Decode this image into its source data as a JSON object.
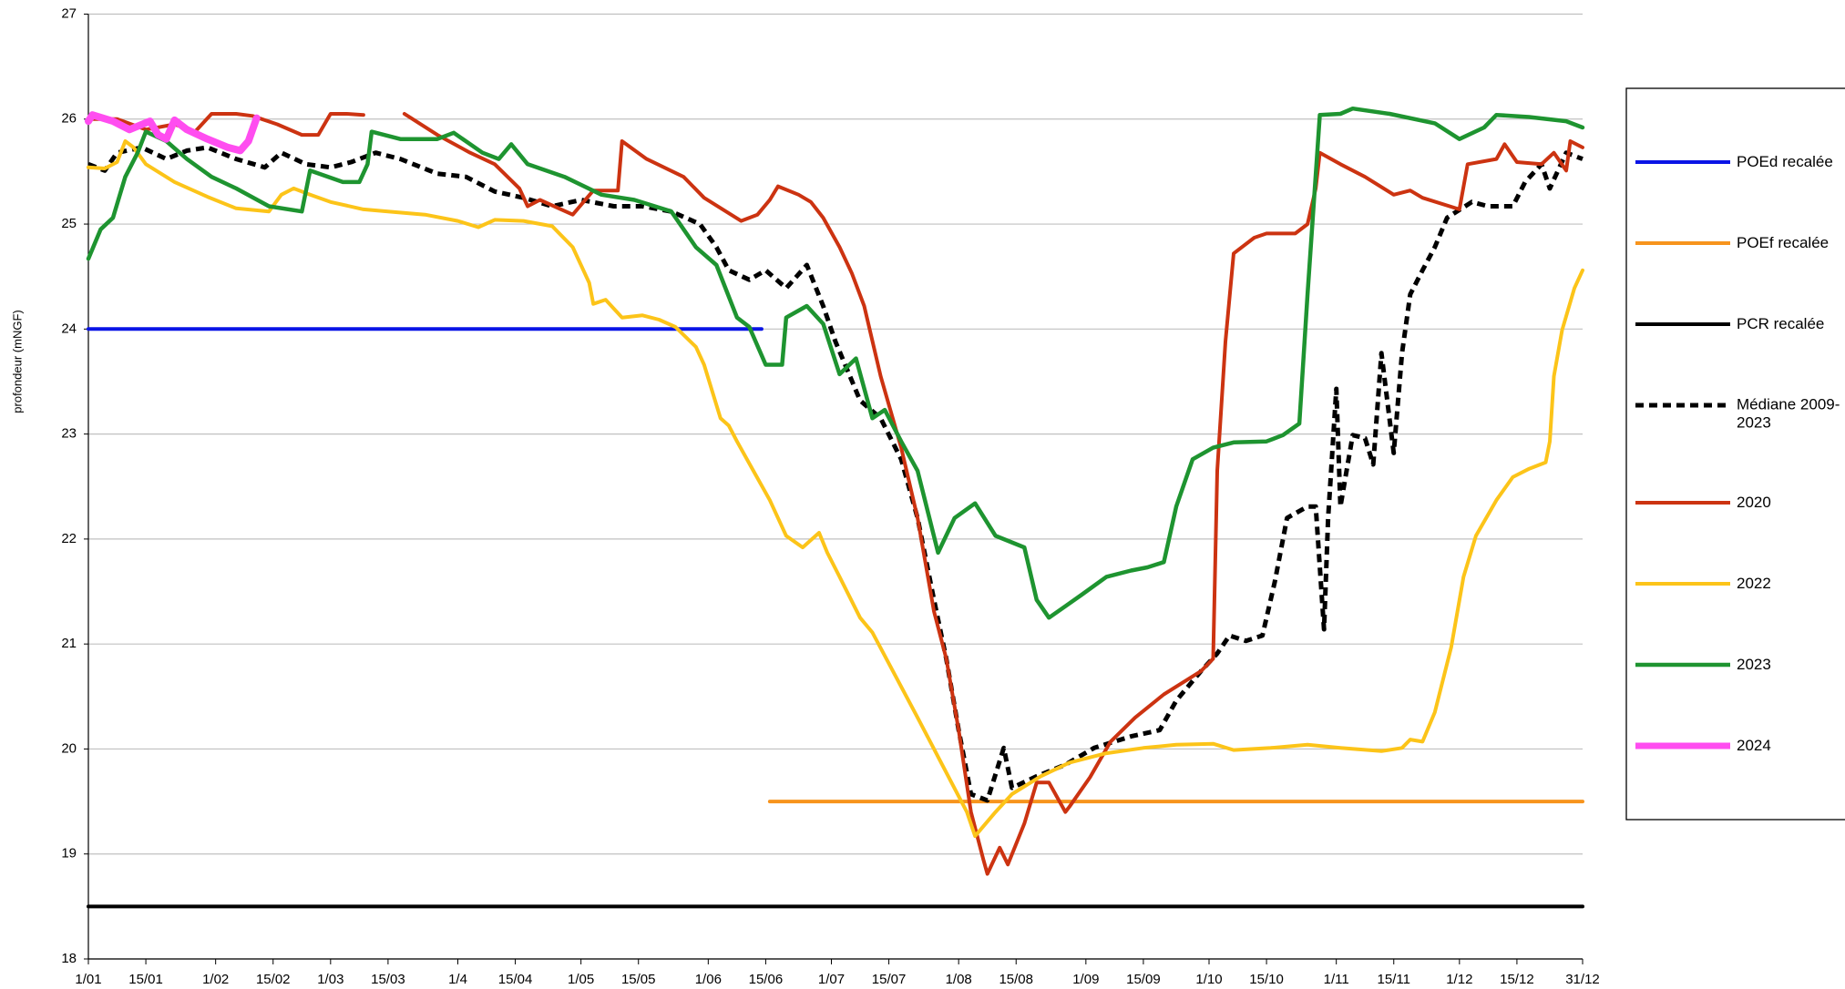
{
  "chart_data": {
    "type": "line",
    "y_label": "profondeur (mNGF)",
    "xlim": [
      0,
      364
    ],
    "xticks": [
      {
        "value": 0,
        "label": "1/01"
      },
      {
        "value": 14,
        "label": "15/01"
      },
      {
        "value": 31,
        "label": "1/02"
      },
      {
        "value": 45,
        "label": "15/02"
      },
      {
        "value": 59,
        "label": "1/03"
      },
      {
        "value": 73,
        "label": "15/03"
      },
      {
        "value": 90,
        "label": "1/4"
      },
      {
        "value": 104,
        "label": "15/04"
      },
      {
        "value": 120,
        "label": "1/05"
      },
      {
        "value": 134,
        "label": "15/05"
      },
      {
        "value": 151,
        "label": "1/06"
      },
      {
        "value": 165,
        "label": "15/06"
      },
      {
        "value": 181,
        "label": "1/07"
      },
      {
        "value": 195,
        "label": "15/07"
      },
      {
        "value": 212,
        "label": "1/08"
      },
      {
        "value": 226,
        "label": "15/08"
      },
      {
        "value": 243,
        "label": "1/09"
      },
      {
        "value": 257,
        "label": "15/09"
      },
      {
        "value": 273,
        "label": "1/10"
      },
      {
        "value": 287,
        "label": "15/10"
      },
      {
        "value": 304,
        "label": "1/11"
      },
      {
        "value": 318,
        "label": "15/11"
      },
      {
        "value": 334,
        "label": "1/12"
      },
      {
        "value": 348,
        "label": "15/12"
      },
      {
        "value": 364,
        "label": "31/12"
      }
    ],
    "ylim": [
      18,
      27
    ],
    "yticks": [
      18,
      19,
      20,
      21,
      22,
      23,
      24,
      25,
      26,
      27
    ],
    "grid": true,
    "legend": "right",
    "series": [
      {
        "name": "POEd recalée",
        "color": "#0a14e6",
        "x": [
          0,
          164
        ],
        "values": [
          24,
          24
        ]
      },
      {
        "name": "POEf recalée",
        "color": "#f7941d",
        "x": [
          166,
          364
        ],
        "values": [
          19.5,
          19.5
        ]
      },
      {
        "name": "PCR recalée",
        "color": "#000000",
        "x": [
          0,
          364
        ],
        "values": [
          18.5,
          18.5
        ]
      },
      {
        "name": "Médiane 2009-2023",
        "color": "#000000",
        "dashed": true,
        "x": [
          0,
          4,
          7,
          13,
          19,
          24,
          29,
          36,
          43,
          47,
          53,
          59,
          64,
          70,
          76,
          85,
          92,
          99,
          106,
          113,
          120,
          128,
          135,
          142,
          149,
          153,
          156,
          161,
          165,
          170,
          175,
          179,
          182,
          188,
          193,
          198,
          202,
          206,
          209,
          212,
          215,
          219,
          223,
          225,
          231,
          238,
          245,
          254,
          261,
          265,
          271,
          275,
          278,
          282,
          286,
          289,
          292,
          297,
          299,
          301,
          302,
          304,
          305,
          308,
          311,
          313,
          315,
          318,
          320,
          322,
          325,
          328,
          331,
          337,
          341,
          347,
          350,
          354,
          356,
          360,
          364
        ],
        "values": [
          25.57,
          25.51,
          25.68,
          25.73,
          25.62,
          25.7,
          25.73,
          25.62,
          25.54,
          25.68,
          25.57,
          25.54,
          25.59,
          25.68,
          25.62,
          25.48,
          25.45,
          25.31,
          25.25,
          25.17,
          25.23,
          25.17,
          25.17,
          25.12,
          25.0,
          24.78,
          24.56,
          24.47,
          24.56,
          24.39,
          24.61,
          24.22,
          23.88,
          23.32,
          23.15,
          22.76,
          22.2,
          21.42,
          20.86,
          20.18,
          19.57,
          19.51,
          20.01,
          19.63,
          19.74,
          19.85,
          20.01,
          20.12,
          20.18,
          20.46,
          20.74,
          20.91,
          21.08,
          21.03,
          21.08,
          21.59,
          22.2,
          22.31,
          22.31,
          21.14,
          22.2,
          23.43,
          22.31,
          22.99,
          22.96,
          22.71,
          23.77,
          22.82,
          23.77,
          24.33,
          24.56,
          24.78,
          25.06,
          25.21,
          25.17,
          25.17,
          25.4,
          25.57,
          25.34,
          25.68,
          25.62
        ]
      },
      {
        "name": "2020",
        "color": "#cc3311",
        "x": [
          0,
          7,
          14,
          21,
          26,
          30,
          36,
          40,
          46,
          52,
          56,
          59,
          63,
          67,
          70,
          77,
          85,
          93,
          99,
          105,
          107,
          110,
          118,
          123,
          129,
          130,
          136,
          145,
          150,
          159,
          163,
          166,
          168,
          173,
          176,
          179,
          183,
          186,
          189,
          193,
          198,
          202,
          206,
          209,
          212,
          215,
          218,
          219,
          222,
          224,
          228,
          231,
          234,
          238,
          239,
          244,
          249,
          255,
          262,
          271,
          274,
          275,
          277,
          279,
          284,
          287,
          294,
          297,
          299,
          300,
          305,
          311,
          318,
          322,
          325,
          334,
          336,
          343,
          345,
          348,
          354,
          357,
          360,
          361,
          364
        ],
        "values": [
          26.0,
          26.0,
          25.9,
          25.95,
          25.88,
          26.05,
          26.05,
          26.03,
          25.95,
          25.85,
          25.85,
          26.05,
          26.05,
          26.04,
          null,
          26.05,
          25.85,
          25.68,
          25.57,
          25.34,
          25.17,
          25.23,
          25.09,
          25.32,
          25.32,
          25.79,
          25.62,
          25.45,
          25.25,
          25.03,
          25.09,
          25.23,
          25.36,
          25.28,
          25.21,
          25.06,
          24.78,
          24.53,
          24.22,
          23.55,
          22.87,
          22.2,
          21.31,
          20.86,
          20.18,
          19.4,
          18.95,
          18.81,
          19.06,
          18.9,
          19.29,
          19.68,
          19.68,
          19.4,
          19.45,
          19.73,
          20.07,
          20.3,
          20.52,
          20.74,
          20.86,
          22.65,
          23.88,
          24.72,
          24.87,
          24.91,
          24.91,
          25.0,
          25.34,
          25.68,
          25.57,
          25.45,
          25.28,
          25.32,
          25.25,
          25.14,
          25.57,
          25.62,
          25.76,
          25.59,
          25.57,
          25.68,
          25.51,
          25.79,
          25.73
        ]
      },
      {
        "name": "2022",
        "color": "#fcc419",
        "x": [
          0,
          4,
          7,
          9,
          11,
          14,
          21,
          29,
          36,
          44,
          47,
          50,
          54,
          59,
          67,
          73,
          82,
          90,
          95,
          99,
          106,
          113,
          118,
          122,
          123,
          126,
          130,
          135,
          139,
          143,
          148,
          150,
          154,
          156,
          158,
          162,
          166,
          170,
          174,
          178,
          180,
          183,
          188,
          191,
          196,
          202,
          208,
          214,
          216,
          221,
          225,
          232,
          239,
          248,
          257,
          265,
          274,
          279,
          288,
          297,
          305,
          315,
          320,
          322,
          325,
          328,
          332,
          335,
          338,
          343,
          347,
          351,
          355,
          356,
          357,
          359,
          362,
          364
        ],
        "values": [
          25.54,
          25.53,
          25.59,
          25.79,
          25.73,
          25.57,
          25.4,
          25.26,
          25.15,
          25.12,
          25.28,
          25.34,
          25.28,
          25.21,
          25.14,
          25.12,
          25.09,
          25.03,
          24.97,
          25.04,
          25.03,
          24.98,
          24.78,
          24.44,
          24.24,
          24.28,
          24.11,
          24.13,
          24.09,
          24.02,
          23.83,
          23.66,
          23.15,
          23.08,
          22.93,
          22.65,
          22.37,
          22.03,
          21.92,
          22.06,
          21.87,
          21.64,
          21.25,
          21.11,
          20.74,
          20.3,
          19.85,
          19.4,
          19.17,
          19.4,
          19.57,
          19.74,
          19.87,
          19.96,
          20.01,
          20.04,
          20.05,
          19.99,
          20.01,
          20.04,
          20.01,
          19.98,
          20.01,
          20.09,
          20.07,
          20.35,
          20.97,
          21.64,
          22.03,
          22.37,
          22.59,
          22.67,
          22.73,
          22.93,
          23.55,
          23.99,
          24.39,
          24.56
        ]
      },
      {
        "name": "2023",
        "color": "#1e9430",
        "x": [
          0,
          3,
          6,
          9,
          12,
          14,
          19,
          24,
          30,
          36,
          44,
          52,
          54,
          62,
          66,
          68,
          69,
          76,
          85,
          89,
          96,
          100,
          103,
          107,
          116,
          125,
          133,
          142,
          148,
          153,
          158,
          161,
          165,
          169,
          170,
          175,
          179,
          183,
          187,
          191,
          194,
          198,
          202,
          207,
          211,
          216,
          221,
          228,
          231,
          234,
          238,
          242,
          248,
          254,
          258,
          262,
          265,
          269,
          274,
          279,
          287,
          291,
          295,
          297,
          300,
          305,
          308,
          317,
          328,
          334,
          340,
          343,
          351,
          360,
          364
        ],
        "values": [
          24.67,
          24.95,
          25.06,
          25.45,
          25.68,
          25.88,
          25.79,
          25.62,
          25.45,
          25.34,
          25.17,
          25.12,
          25.51,
          25.4,
          25.4,
          25.57,
          25.88,
          25.81,
          25.81,
          25.87,
          25.68,
          25.62,
          25.76,
          25.57,
          25.45,
          25.28,
          25.23,
          25.12,
          24.78,
          24.61,
          24.11,
          24.02,
          23.66,
          23.66,
          24.11,
          24.22,
          24.05,
          23.57,
          23.72,
          23.15,
          23.23,
          22.93,
          22.65,
          21.87,
          22.2,
          22.34,
          22.03,
          21.92,
          21.42,
          21.25,
          21.36,
          21.47,
          21.64,
          21.7,
          21.73,
          21.78,
          22.31,
          22.76,
          22.87,
          22.92,
          22.93,
          22.99,
          23.1,
          24.33,
          26.04,
          26.05,
          26.1,
          26.05,
          25.96,
          25.81,
          25.92,
          26.04,
          26.02,
          25.98,
          25.92
        ]
      },
      {
        "name": "2024",
        "color": "#ff4df0",
        "x": [
          0,
          1,
          6,
          10,
          15,
          17,
          19,
          21,
          24,
          29,
          34,
          37,
          39,
          41
        ],
        "values": [
          25.98,
          26.04,
          25.98,
          25.9,
          25.98,
          25.85,
          25.81,
          25.99,
          25.9,
          25.81,
          25.73,
          25.7,
          25.79,
          26.01
        ]
      }
    ]
  }
}
